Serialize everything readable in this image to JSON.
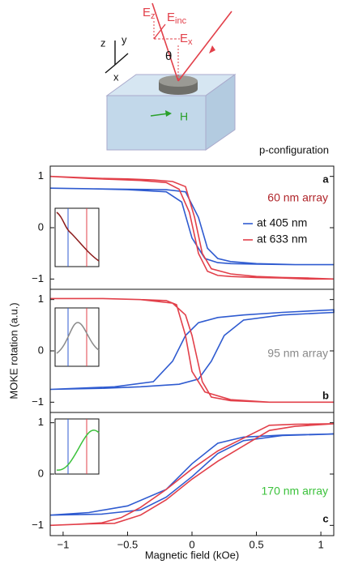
{
  "diagram": {
    "axes": {
      "z": "z",
      "y": "y",
      "x": "x"
    },
    "ez": {
      "main": "E",
      "sub": "z"
    },
    "einc": {
      "main": "E",
      "sub": "inc"
    },
    "ex": {
      "main": "E",
      "sub": "x"
    },
    "theta": "θ",
    "field": "H",
    "configuration": "p-configuration"
  },
  "figure": {
    "ylabel": "MOKE rotation (a.u.)",
    "xlabel": "Magnetic field (kOe)"
  },
  "chart_data": [
    {
      "type": "line",
      "panel": "a",
      "annotation": {
        "text": "60 nm array",
        "color": "#b0262b"
      },
      "xlim": [
        -1.1,
        1.1
      ],
      "ylim": [
        -1.2,
        1.2
      ],
      "yticks": [
        {
          "value": -1,
          "label": "−1"
        },
        0,
        1
      ],
      "series": [
        {
          "name": "at 405 nm",
          "color": "#2f5bd0",
          "x": [
            -1.1,
            -0.8,
            -0.5,
            -0.2,
            -0.05,
            0.05,
            0.12,
            0.2,
            0.3,
            0.5,
            0.8,
            1.1,
            1.1,
            0.8,
            0.5,
            0.3,
            0.2,
            0.1,
            0.0,
            -0.08,
            -0.2,
            -0.5,
            -0.8,
            -1.1
          ],
          "values": [
            0.77,
            0.76,
            0.75,
            0.74,
            0.7,
            0.2,
            -0.4,
            -0.6,
            -0.66,
            -0.7,
            -0.72,
            -0.72,
            -0.72,
            -0.72,
            -0.71,
            -0.7,
            -0.68,
            -0.6,
            -0.2,
            0.5,
            0.7,
            0.74,
            0.76,
            0.77
          ]
        },
        {
          "name": "at 633 nm",
          "color": "#e2404a",
          "x": [
            -1.1,
            -0.9,
            -0.7,
            -0.5,
            -0.3,
            -0.15,
            -0.05,
            0.02,
            0.08,
            0.15,
            0.3,
            0.5,
            0.7,
            0.9,
            1.1,
            1.1,
            0.9,
            0.7,
            0.5,
            0.3,
            0.2,
            0.12,
            0.05,
            -0.02,
            -0.1,
            -0.2,
            -0.4,
            -0.6,
            -0.8,
            -1.1
          ],
          "values": [
            1.0,
            0.98,
            0.96,
            0.95,
            0.93,
            0.9,
            0.8,
            0.2,
            -0.5,
            -0.8,
            -0.9,
            -0.95,
            -0.97,
            -0.98,
            -1.0,
            -1.0,
            -1.0,
            -0.98,
            -0.97,
            -0.95,
            -0.93,
            -0.85,
            -0.5,
            0.3,
            0.75,
            0.88,
            0.92,
            0.94,
            0.96,
            1.0
          ]
        }
      ]
    },
    {
      "type": "line",
      "panel": "b",
      "annotation": {
        "text": "95 nm array",
        "color": "#8a8a8a"
      },
      "xlim": [
        -1.1,
        1.1
      ],
      "ylim": [
        -1.2,
        1.2
      ],
      "yticks": [
        {
          "value": -1,
          "label": "−1"
        },
        0,
        1
      ],
      "series": [
        {
          "color": "#2f5bd0",
          "x": [
            -1.1,
            -0.7,
            -0.4,
            -0.1,
            0.05,
            0.15,
            0.25,
            0.4,
            0.7,
            1.1,
            1.1,
            0.7,
            0.4,
            0.2,
            0.05,
            -0.05,
            -0.15,
            -0.3,
            -0.6,
            -1.1
          ],
          "values": [
            -0.75,
            -0.73,
            -0.7,
            -0.65,
            -0.55,
            -0.2,
            0.3,
            0.6,
            0.7,
            0.75,
            0.8,
            0.75,
            0.7,
            0.65,
            0.55,
            0.3,
            -0.2,
            -0.6,
            -0.7,
            -0.75
          ]
        },
        {
          "color": "#e2404a",
          "x": [
            -1.1,
            -0.7,
            -0.4,
            -0.2,
            -0.12,
            -0.05,
            0.0,
            0.1,
            0.3,
            0.6,
            1.1,
            1.1,
            0.6,
            0.3,
            0.15,
            0.08,
            0.0,
            -0.05,
            -0.15,
            -0.4,
            -0.7,
            -1.1
          ],
          "values": [
            1.02,
            1.02,
            1.0,
            0.98,
            0.9,
            0.3,
            -0.4,
            -0.8,
            -0.95,
            -1.0,
            -1.0,
            -1.0,
            -1.0,
            -0.97,
            -0.9,
            -0.6,
            0.3,
            0.7,
            0.93,
            1.0,
            1.02,
            1.02
          ]
        }
      ]
    },
    {
      "type": "line",
      "panel": "c",
      "annotation": {
        "text": "170 nm array",
        "color": "#3cc23c"
      },
      "xlim": [
        -1.1,
        1.1
      ],
      "ylim": [
        -1.2,
        1.2
      ],
      "yticks": [
        {
          "value": -1,
          "label": "−1"
        },
        0,
        1
      ],
      "xticks": [
        {
          "value": -1,
          "label": "−1"
        },
        {
          "value": -0.5,
          "label": "−0.5"
        },
        0,
        0.5,
        1
      ],
      "series": [
        {
          "color": "#2f5bd0",
          "x": [
            -1.1,
            -0.7,
            -0.4,
            -0.2,
            0,
            0.2,
            0.4,
            0.7,
            1.1,
            1.1,
            0.7,
            0.4,
            0.2,
            0,
            -0.2,
            -0.5,
            -0.8,
            -1.1
          ],
          "values": [
            -0.8,
            -0.78,
            -0.7,
            -0.45,
            -0.05,
            0.4,
            0.65,
            0.75,
            0.78,
            0.78,
            0.76,
            0.72,
            0.6,
            0.2,
            -0.3,
            -0.62,
            -0.75,
            -0.8
          ]
        },
        {
          "color": "#e2404a",
          "x": [
            -1.1,
            -0.8,
            -0.6,
            -0.4,
            -0.2,
            0,
            0.2,
            0.4,
            0.5,
            0.6,
            0.8,
            1.1,
            1.1,
            0.8,
            0.6,
            0.4,
            0.2,
            0,
            -0.2,
            -0.4,
            -0.55,
            -0.7,
            -0.9,
            -1.1
          ],
          "values": [
            -1.0,
            -0.97,
            -0.96,
            -0.8,
            -0.5,
            -0.1,
            0.25,
            0.55,
            0.7,
            0.85,
            0.93,
            0.98,
            0.98,
            0.97,
            0.95,
            0.7,
            0.45,
            0.1,
            -0.3,
            -0.65,
            -0.85,
            -0.95,
            -0.98,
            -1.0
          ]
        }
      ]
    }
  ]
}
